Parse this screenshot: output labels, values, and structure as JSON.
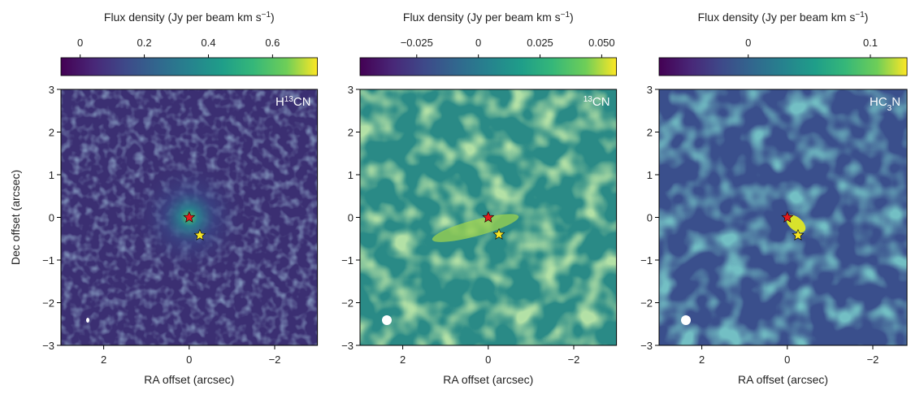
{
  "chart_data": [
    {
      "type": "image",
      "colormap": "viridis",
      "title": [
        {
          "text": "Flux density (Jy per beam km s"
        },
        {
          "text": "−1",
          "script": "super"
        },
        {
          "text": ")"
        }
      ],
      "clim": [
        -0.06,
        0.74
      ],
      "cticks": [
        0,
        0.2,
        0.4,
        0.6
      ],
      "label": [
        {
          "text": "H"
        },
        {
          "text": "13",
          "script": "super"
        },
        {
          "text": "CN"
        }
      ],
      "xlim": [
        3,
        -3
      ],
      "ylim": [
        -3,
        3
      ],
      "xticks": [
        2,
        0,
        {
          "value": -2,
          "label": "−2"
        }
      ],
      "yticks": [
        3,
        2,
        1,
        0,
        {
          "value": -1,
          "label": "−1"
        },
        {
          "value": -2,
          "label": "−2"
        },
        {
          "value": -3,
          "label": "−3"
        }
      ],
      "xlabel": "RA offset (arcsec)",
      "ylabel": "Dec offset (arcsec)",
      "series": [
        {
          "color": "#e31a1c",
          "x": [
            0
          ],
          "y": [
            0
          ]
        },
        {
          "color": "#f7e626",
          "x": [
            -0.25
          ],
          "y": [
            -0.42
          ]
        }
      ]
    },
    {
      "type": "image",
      "colormap": "viridis",
      "title": [
        {
          "text": "Flux density (Jy per beam km s"
        },
        {
          "text": "−1",
          "script": "super"
        },
        {
          "text": ")"
        }
      ],
      "clim": [
        -0.048,
        0.056
      ],
      "cticks": [
        {
          "value": -0.025,
          "label": "−0.025"
        },
        0,
        0.025,
        {
          "value": 0.05,
          "label": "0.050"
        }
      ],
      "label": [
        {
          "text": "13",
          "script": "super"
        },
        {
          "text": "CN"
        }
      ],
      "xlim": [
        3,
        -3
      ],
      "ylim": [
        -3,
        3
      ],
      "xticks": [
        2,
        0,
        {
          "value": -2,
          "label": "−2"
        }
      ],
      "yticks": [
        3,
        2,
        1,
        0,
        {
          "value": -1,
          "label": "−1"
        },
        {
          "value": -2,
          "label": "−2"
        },
        {
          "value": -3,
          "label": "−3"
        }
      ],
      "xlabel": "RA offset (arcsec)",
      "series": [
        {
          "color": "#e31a1c",
          "x": [
            0
          ],
          "y": [
            0
          ]
        },
        {
          "color": "#f7e626",
          "x": [
            -0.25
          ],
          "y": [
            -0.4
          ]
        }
      ]
    },
    {
      "type": "image",
      "colormap": "viridis",
      "title": [
        {
          "text": "Flux density (Jy per beam km s"
        },
        {
          "text": "−1",
          "script": "super"
        },
        {
          "text": ")"
        }
      ],
      "clim": [
        -0.073,
        0.13
      ],
      "cticks": [
        0,
        0.1
      ],
      "label": [
        {
          "text": "HC"
        },
        {
          "text": "3",
          "script": "sub"
        },
        {
          "text": "N"
        }
      ],
      "xlim": [
        3,
        -2.8
      ],
      "ylim": [
        -3,
        3
      ],
      "xticks": [
        2,
        0,
        {
          "value": -2,
          "label": "−2"
        }
      ],
      "yticks": [
        3,
        2,
        1,
        0,
        {
          "value": -1,
          "label": "−1"
        },
        {
          "value": -2,
          "label": "−2"
        },
        {
          "value": -3,
          "label": "−3"
        }
      ],
      "xlabel": "RA offset (arcsec)",
      "series": [
        {
          "color": "#e31a1c",
          "x": [
            0
          ],
          "y": [
            0
          ]
        },
        {
          "color": "#f7e626",
          "x": [
            -0.25
          ],
          "y": [
            -0.42
          ]
        }
      ]
    }
  ]
}
